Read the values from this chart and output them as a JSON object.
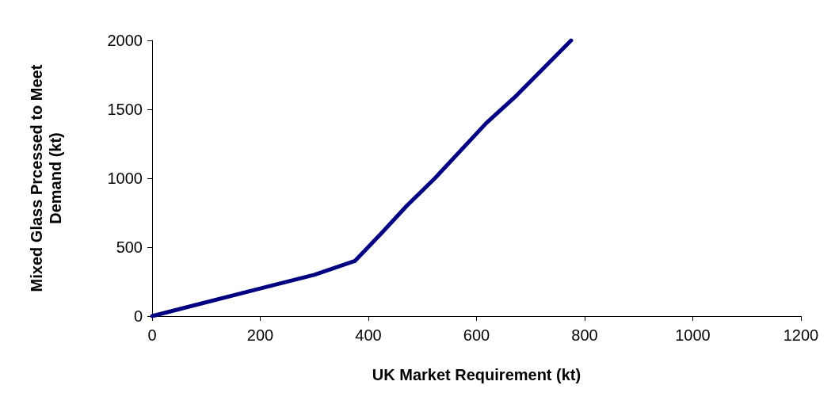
{
  "chart_data": {
    "type": "line",
    "xlabel": "UK Market Requirement (kt)",
    "ylabel": "Mixed Glass Prcessed to Meet Demand (kt)",
    "series": [
      {
        "color": "#000080",
        "x": [
          0,
          200,
          300,
          375,
          424,
          471,
          523,
          618,
          674,
          775
        ],
        "values": [
          0,
          200,
          300,
          400,
          600,
          800,
          1000,
          1400,
          1600,
          2000
        ]
      }
    ],
    "xlim": [
      0,
      1200
    ],
    "xticks": [
      0,
      200,
      400,
      600,
      800,
      1000,
      1200
    ],
    "ylim": [
      0,
      2000
    ],
    "yticks": [
      0,
      500,
      1000,
      1500,
      2000
    ],
    "grid": false,
    "marker": "none",
    "line_style": "solid"
  }
}
